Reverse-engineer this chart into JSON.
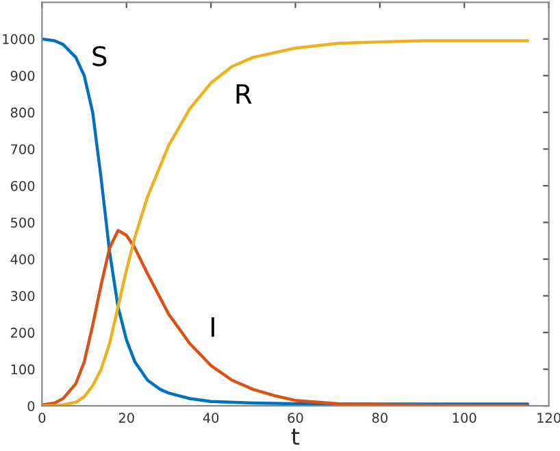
{
  "chart_data": {
    "type": "line",
    "xlabel": "t",
    "xlim": [
      0,
      120
    ],
    "xticks": [
      0,
      20,
      40,
      60,
      80,
      100,
      120
    ],
    "ylim": [
      0,
      1100
    ],
    "yticks": [
      0,
      100,
      200,
      300,
      400,
      500,
      600,
      700,
      800,
      900,
      1000
    ],
    "grid": false,
    "legend": false,
    "series": [
      {
        "name": "S",
        "color": "#0072bd",
        "x": [
          0,
          3,
          5,
          8,
          10,
          12,
          14,
          16,
          18,
          20,
          22,
          25,
          28,
          30,
          35,
          40,
          50,
          60,
          80,
          100,
          115
        ],
        "values": [
          1000,
          995,
          985,
          950,
          900,
          800,
          620,
          420,
          270,
          180,
          120,
          70,
          45,
          35,
          20,
          12,
          8,
          6,
          5,
          5,
          5
        ]
      },
      {
        "name": "I",
        "color": "#d95319",
        "x": [
          0,
          3,
          5,
          8,
          10,
          12,
          14,
          16,
          18,
          20,
          22,
          25,
          30,
          35,
          40,
          45,
          50,
          55,
          60,
          70,
          80,
          100,
          115
        ],
        "values": [
          3,
          8,
          20,
          60,
          120,
          220,
          330,
          430,
          478,
          465,
          430,
          360,
          250,
          170,
          110,
          70,
          45,
          28,
          15,
          6,
          3,
          1,
          0
        ]
      },
      {
        "name": "R",
        "color": "#edb120",
        "x": [
          0,
          3,
          5,
          8,
          10,
          12,
          14,
          16,
          18,
          20,
          22,
          25,
          30,
          35,
          40,
          45,
          50,
          60,
          70,
          80,
          90,
          115
        ],
        "values": [
          0,
          1,
          3,
          10,
          25,
          55,
          100,
          170,
          270,
          370,
          460,
          570,
          710,
          810,
          880,
          925,
          950,
          975,
          988,
          992,
          995,
          995
        ]
      }
    ]
  }
}
